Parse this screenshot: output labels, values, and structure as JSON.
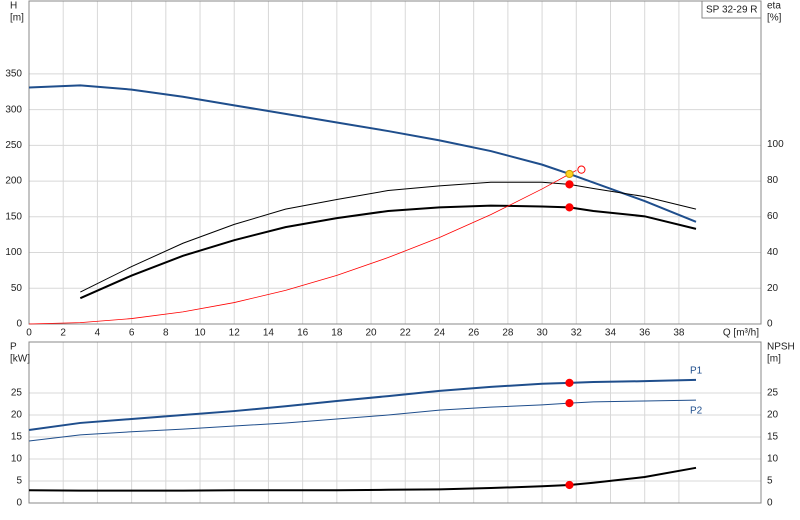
{
  "chart_data": [
    {
      "type": "line",
      "annotation": "SP 32-29 R",
      "ylabel": [
        "H",
        "[m]"
      ],
      "y2label": [
        "eta",
        "[%]"
      ],
      "xlabel": "Q [m³/h]",
      "xlim": [
        0,
        42.8
      ],
      "xticks": [
        0,
        2,
        4,
        6,
        8,
        10,
        12,
        14,
        16,
        18,
        20,
        22,
        24,
        26,
        28,
        30,
        32,
        34,
        36,
        38
      ],
      "ylim": [
        0,
        452
      ],
      "yticks": [
        0,
        50,
        100,
        150,
        200,
        250,
        300,
        350
      ],
      "y2lim": [
        0,
        180
      ],
      "y2ticks": [
        0,
        20,
        40,
        60,
        80,
        100
      ],
      "grid": true,
      "series": [
        {
          "style": "line",
          "color": "#1f4e8c",
          "width": 2,
          "axis": "y",
          "x": [
            0,
            3,
            6,
            9,
            12,
            15,
            18,
            21,
            24,
            27,
            30,
            31.6,
            33,
            36,
            39
          ],
          "values": [
            331,
            334,
            328,
            318,
            306,
            294,
            282,
            270,
            257,
            242,
            223,
            210,
            198,
            172,
            143
          ]
        },
        {
          "style": "line",
          "color": "#000000",
          "width": 1,
          "axis": "y2",
          "x": [
            3,
            6,
            9,
            12,
            15,
            18,
            21,
            24,
            27,
            30,
            31.6,
            33,
            36,
            39
          ],
          "values": [
            17.8,
            32,
            45,
            55.5,
            64,
            69.4,
            74.4,
            77,
            79,
            79,
            77.8,
            75.5,
            71,
            64
          ]
        },
        {
          "style": "line",
          "color": "#000000",
          "width": 2,
          "axis": "y2",
          "x": [
            3,
            6,
            9,
            12,
            15,
            18,
            21,
            24,
            27,
            30,
            31.6,
            33,
            36,
            39
          ],
          "values": [
            14.4,
            27,
            38,
            46.7,
            54,
            59,
            63,
            65,
            66,
            65.5,
            65,
            63,
            60,
            53
          ]
        },
        {
          "style": "line",
          "color": "#ff0000",
          "width": 0.8,
          "axis": "y",
          "x": [
            0,
            3,
            6,
            9,
            12,
            15,
            18,
            21,
            24,
            27,
            30,
            32
          ],
          "values": [
            0,
            1.9,
            7.6,
            17,
            30,
            47,
            68,
            93,
            121,
            153,
            189,
            215
          ]
        },
        {
          "style": "dot",
          "color": "#ff0000",
          "axis": "y2",
          "x": [
            31.6
          ],
          "values": [
            77.8
          ]
        },
        {
          "style": "dot",
          "color": "#ff0000",
          "axis": "y2",
          "x": [
            31.6
          ],
          "values": [
            65
          ]
        },
        {
          "style": "ring",
          "color": "#ff0000",
          "axis": "y",
          "x": [
            32.3
          ],
          "values": [
            216
          ]
        },
        {
          "style": "dot",
          "color": "#ffd21f",
          "axis": "y",
          "x": [
            31.6
          ],
          "values": [
            210
          ]
        }
      ]
    },
    {
      "type": "line",
      "ylabel": [
        "P",
        "[kW]"
      ],
      "y2label": [
        "NPSH",
        "[m]"
      ],
      "xlim": [
        0,
        42.8
      ],
      "ylim": [
        0,
        36.6
      ],
      "yticks": [
        0,
        5,
        10,
        15,
        20,
        25
      ],
      "y2lim": [
        0,
        36.6
      ],
      "y2ticks": [
        0,
        5,
        10,
        15,
        20,
        25
      ],
      "grid": true,
      "series": [
        {
          "name": "P1",
          "style": "line",
          "color": "#1f4e8c",
          "width": 2,
          "axis": "y",
          "x": [
            0,
            3,
            6,
            9,
            12,
            15,
            18,
            21,
            24,
            27,
            30,
            31.6,
            33,
            36,
            39
          ],
          "values": [
            16.6,
            18.2,
            19.1,
            20,
            20.9,
            22,
            23.2,
            24.3,
            25.5,
            26.4,
            27.1,
            27.3,
            27.5,
            27.7,
            28
          ]
        },
        {
          "name": "P2",
          "style": "line",
          "color": "#1f4e8c",
          "width": 1,
          "axis": "y",
          "x": [
            0,
            3,
            6,
            9,
            12,
            15,
            18,
            21,
            24,
            27,
            30,
            31.6,
            33,
            36,
            39
          ],
          "values": [
            14.1,
            15.5,
            16.2,
            16.8,
            17.5,
            18.2,
            19.1,
            20,
            21.1,
            21.8,
            22.3,
            22.7,
            23,
            23.2,
            23.4
          ]
        },
        {
          "style": "line",
          "color": "#000000",
          "width": 2,
          "axis": "y2",
          "x": [
            0,
            3,
            6,
            9,
            12,
            15,
            18,
            21,
            24,
            27,
            30,
            31.6,
            33,
            36,
            39
          ],
          "values": [
            2.9,
            2.8,
            2.8,
            2.8,
            2.9,
            2.9,
            2.9,
            3.0,
            3.1,
            3.4,
            3.8,
            4.1,
            4.6,
            5.9,
            8.0
          ]
        },
        {
          "style": "dot",
          "color": "#ff0000",
          "axis": "y",
          "x": [
            31.6
          ],
          "values": [
            27.3
          ]
        },
        {
          "style": "dot",
          "color": "#ff0000",
          "axis": "y",
          "x": [
            31.6
          ],
          "values": [
            22.7
          ]
        },
        {
          "style": "dot",
          "color": "#ff0000",
          "axis": "y2",
          "x": [
            31.6
          ],
          "values": [
            4.1
          ]
        }
      ]
    }
  ]
}
